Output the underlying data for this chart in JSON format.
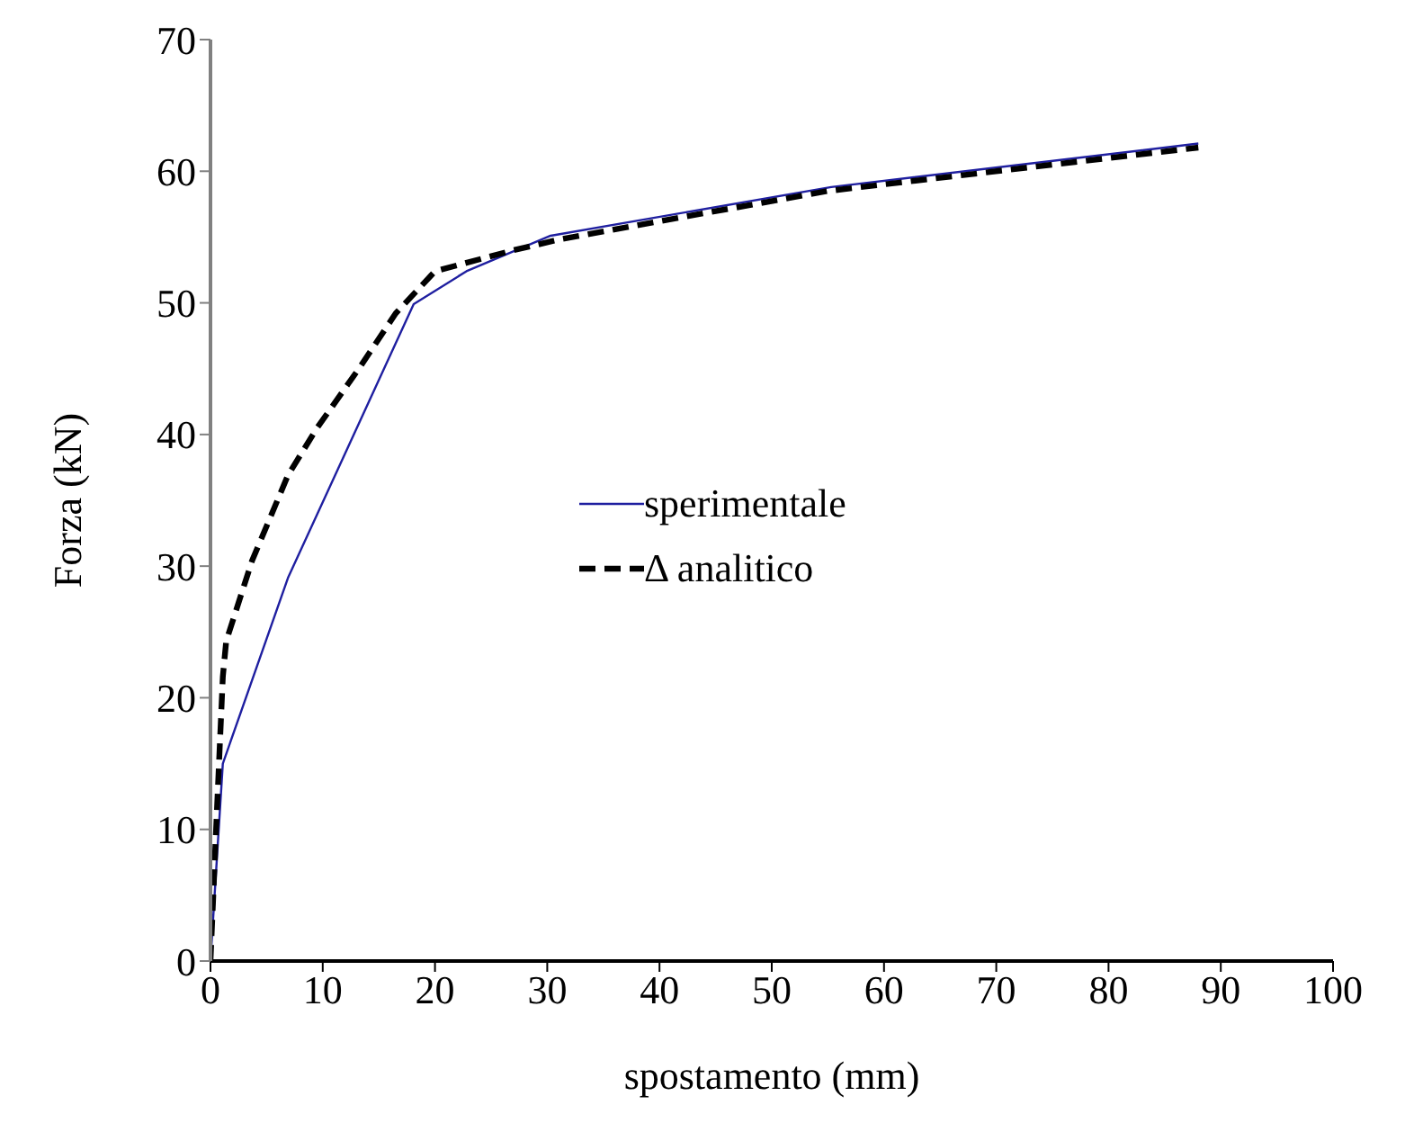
{
  "chart_data": {
    "type": "line",
    "xlabel": "spostamento (mm)",
    "ylabel": "Forza (kN)",
    "xlim": [
      0,
      100
    ],
    "xticks": [
      0,
      10,
      20,
      30,
      40,
      50,
      60,
      70,
      80,
      90,
      100
    ],
    "ylim": [
      0,
      70
    ],
    "yticks": [
      0,
      10,
      20,
      30,
      40,
      50,
      60,
      70
    ],
    "legend": "center",
    "marker": "none",
    "series": [
      {
        "name": "sperimentale",
        "color": "#1f1fa0",
        "line_style": "solid",
        "x": [
          0,
          1.1,
          6.9,
          18.1,
          22.8,
          30.3,
          55.3,
          88
        ],
        "values": [
          0,
          15,
          29.1,
          49.9,
          52.4,
          55.1,
          58.8,
          62.1
        ]
      },
      {
        "name": "Δ analitico",
        "color": "#000000",
        "line_style": "dashed",
        "x": [
          0,
          0.5,
          1.1,
          1.4,
          3.7,
          6.9,
          9.5,
          13.3,
          16.5,
          20,
          27,
          31,
          40,
          55,
          88
        ],
        "values": [
          0,
          10,
          21.6,
          24.3,
          30.4,
          36.9,
          40.5,
          45.1,
          49.2,
          52.4,
          54,
          54.8,
          56.2,
          58.5,
          61.8
        ]
      }
    ]
  }
}
